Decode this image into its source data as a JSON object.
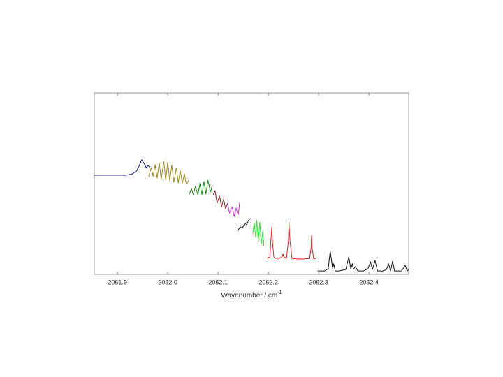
{
  "chart_data": {
    "type": "line",
    "xlabel": {
      "text": "Wavenumber / cm",
      "superscript": "-1"
    },
    "xlim": [
      2061.854,
      2062.479
    ],
    "xticks": [
      2061.9,
      {
        "value": 2062,
        "label": "2062.0"
      },
      2062.1,
      2062.2,
      2062.3,
      2062.4
    ],
    "ylim": [
      0,
      100
    ],
    "series": [
      {
        "color": "#1a1a8c",
        "x": [
          2061.854,
          2061.875,
          2061.896,
          2061.917,
          2061.93,
          2061.939,
          2061.944,
          2061.948,
          2061.953,
          2061.957,
          2061.961,
          2061.965
        ],
        "values": [
          54.6,
          54.6,
          54.6,
          54.6,
          55.4,
          57.3,
          60.4,
          63.1,
          61.2,
          58.8,
          60.0,
          58.8
        ]
      },
      {
        "color": "#9a8a20",
        "x": [
          2061.962,
          2061.967,
          2061.971,
          2061.975,
          2061.979,
          2061.983,
          2061.987,
          2061.992,
          2061.996,
          2062.0,
          2062.004,
          2062.008,
          2062.012,
          2062.017,
          2062.021,
          2062.025,
          2062.029,
          2062.033,
          2062.037,
          2062.042
        ],
        "values": [
          53.8,
          58.8,
          54.2,
          60.4,
          53.1,
          61.5,
          52.3,
          62.3,
          51.9,
          61.9,
          51.5,
          60.4,
          50.8,
          58.8,
          50.4,
          57.3,
          50.0,
          55.4,
          49.6,
          51.9
        ]
      },
      {
        "color": "#1a8a1a",
        "x": [
          2062.043,
          2062.047,
          2062.051,
          2062.055,
          2062.06,
          2062.064,
          2062.068,
          2062.072,
          2062.076,
          2062.08,
          2062.085,
          2062.089
        ],
        "values": [
          44.2,
          47.3,
          43.8,
          48.5,
          43.8,
          50.0,
          43.8,
          51.2,
          44.2,
          51.9,
          45.4,
          49.2
        ]
      },
      {
        "color": "#8b2a1a",
        "x": [
          2062.09,
          2062.094,
          2062.098,
          2062.103,
          2062.107,
          2062.111,
          2062.115,
          2062.119
        ],
        "values": [
          43.5,
          46.2,
          39.2,
          43.1,
          37.3,
          41.5,
          36.2,
          39.2
        ]
      },
      {
        "color": "#e020e0",
        "x": [
          2062.119,
          2062.123,
          2062.128,
          2062.132,
          2062.136,
          2062.14,
          2062.143
        ],
        "values": [
          38.8,
          33.8,
          37.3,
          31.9,
          36.5,
          32.7,
          39.6
        ]
      },
      {
        "color": "#222222",
        "x": [
          2062.14,
          2062.144,
          2062.148,
          2062.153,
          2062.157,
          2062.161,
          2062.165
        ],
        "values": [
          24.2,
          26.2,
          25.4,
          28.1,
          27.3,
          30.0,
          30.8
        ]
      },
      {
        "color": "#30e030",
        "x": [
          2062.169,
          2062.172,
          2062.175,
          2062.177,
          2062.18,
          2062.183,
          2062.186,
          2062.189,
          2062.191
        ],
        "values": [
          22.3,
          28.1,
          20.4,
          30.0,
          18.5,
          28.8,
          16.5,
          24.2,
          15.8
        ]
      },
      {
        "color": "#e02020",
        "x": [
          2062.197,
          2062.203,
          2062.205,
          2062.207,
          2062.208,
          2062.211,
          2062.215,
          2062.222,
          2062.228,
          2062.229,
          2062.23,
          2062.236,
          2062.24,
          2062.241,
          2062.243,
          2062.247,
          2062.257,
          2062.271,
          2062.282,
          2062.285,
          2062.286,
          2062.287,
          2062.29,
          2062.294
        ],
        "values": [
          8.8,
          9.6,
          18.5,
          26.2,
          18.5,
          9.6,
          8.8,
          8.8,
          10.0,
          11.2,
          10.0,
          8.8,
          18.5,
          28.8,
          18.5,
          8.8,
          8.5,
          8.5,
          8.8,
          14.6,
          21.5,
          14.6,
          8.8,
          8.5
        ]
      },
      {
        "color": "#111111",
        "x": [
          2062.298,
          2062.312,
          2062.319,
          2062.323,
          2062.328,
          2062.33,
          2062.333,
          2062.34,
          2062.354,
          2062.36,
          2062.364,
          2062.367,
          2062.369,
          2062.373,
          2062.378,
          2062.389,
          2062.398,
          2062.403,
          2062.407,
          2062.412,
          2062.417,
          2062.428,
          2062.435,
          2062.439,
          2062.443,
          2062.447,
          2062.451,
          2062.465,
          2062.472,
          2062.476,
          2062.479
        ],
        "values": [
          1.9,
          1.9,
          3.1,
          12.7,
          3.1,
          5.8,
          1.9,
          1.9,
          2.7,
          9.6,
          3.1,
          5.8,
          2.7,
          4.2,
          1.9,
          1.9,
          3.1,
          6.9,
          2.7,
          7.7,
          1.9,
          1.9,
          2.7,
          5.8,
          1.9,
          7.3,
          1.9,
          1.9,
          5.0,
          1.9,
          2.7
        ]
      }
    ]
  }
}
